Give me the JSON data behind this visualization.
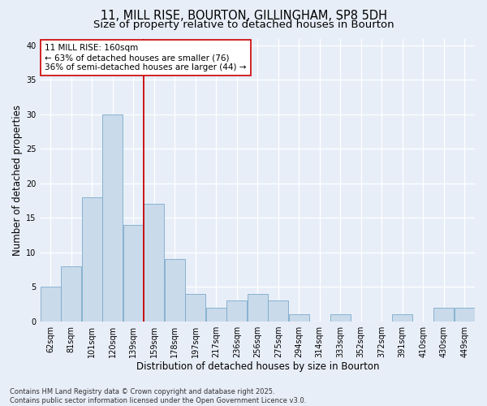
{
  "title_line1": "11, MILL RISE, BOURTON, GILLINGHAM, SP8 5DH",
  "title_line2": "Size of property relative to detached houses in Bourton",
  "xlabel": "Distribution of detached houses by size in Bourton",
  "ylabel": "Number of detached properties",
  "bin_labels": [
    "62sqm",
    "81sqm",
    "101sqm",
    "120sqm",
    "139sqm",
    "159sqm",
    "178sqm",
    "197sqm",
    "217sqm",
    "236sqm",
    "256sqm",
    "275sqm",
    "294sqm",
    "314sqm",
    "333sqm",
    "352sqm",
    "372sqm",
    "391sqm",
    "410sqm",
    "430sqm",
    "449sqm"
  ],
  "bar_values": [
    5,
    8,
    18,
    30,
    14,
    17,
    9,
    4,
    2,
    3,
    4,
    3,
    1,
    0,
    1,
    0,
    0,
    1,
    0,
    2,
    2
  ],
  "bar_color": "#c9daea",
  "bar_edge_color": "#7aaaca",
  "vline_x": 4.5,
  "vline_color": "#cc0000",
  "annotation_text": "11 MILL RISE: 160sqm\n← 63% of detached houses are smaller (76)\n36% of semi-detached houses are larger (44) →",
  "annotation_box_color": "#ffffff",
  "annotation_box_edge": "#cc0000",
  "ylim": [
    0,
    41
  ],
  "yticks": [
    0,
    5,
    10,
    15,
    20,
    25,
    30,
    35,
    40
  ],
  "background_color": "#e8eef8",
  "plot_bg_color": "#e8eef8",
  "footer_line1": "Contains HM Land Registry data © Crown copyright and database right 2025.",
  "footer_line2": "Contains public sector information licensed under the Open Government Licence v3.0.",
  "title_fontsize": 10.5,
  "subtitle_fontsize": 9.5,
  "axis_label_fontsize": 8.5,
  "tick_fontsize": 7,
  "annotation_fontsize": 7.5,
  "footer_fontsize": 6
}
